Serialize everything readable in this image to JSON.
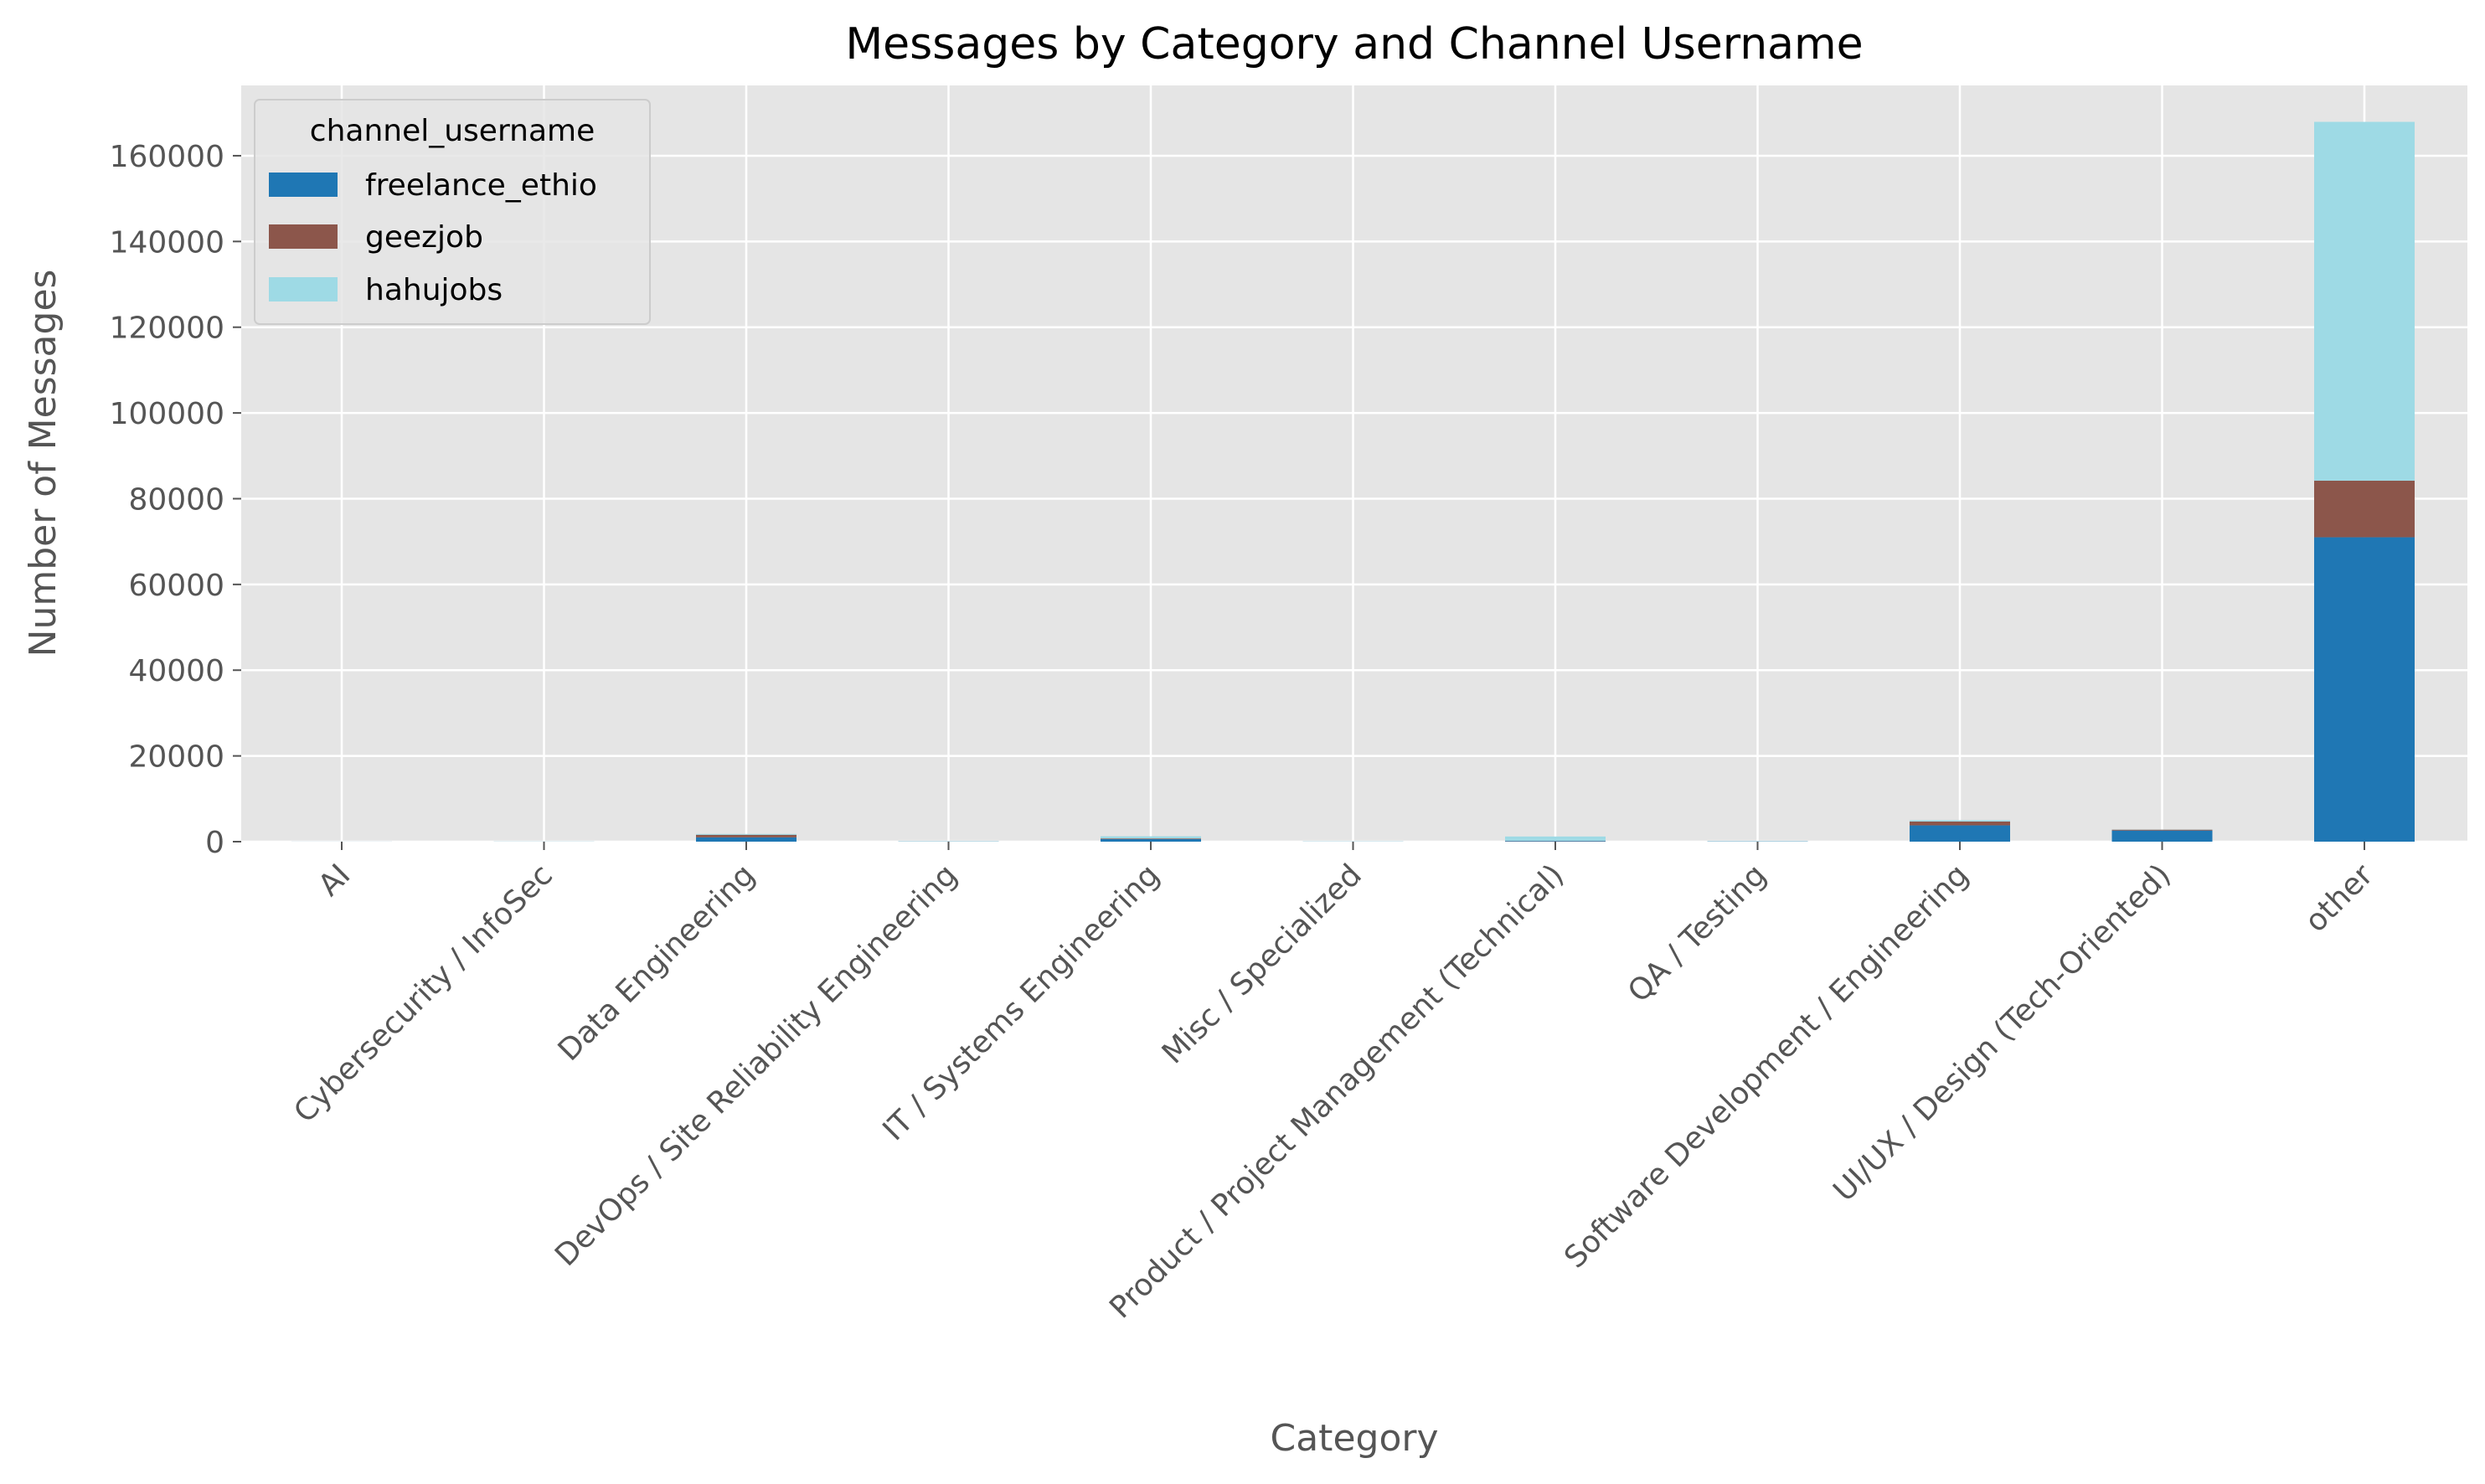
{
  "chart_data": {
    "type": "bar",
    "stacked": true,
    "title": "Messages by Category and Channel Username",
    "xlabel": "Category",
    "ylabel": "Number of Messages",
    "ylim": [
      0,
      176400
    ],
    "yticks": [
      0,
      20000,
      40000,
      60000,
      80000,
      100000,
      120000,
      140000,
      160000
    ],
    "grid": true,
    "legend": {
      "title": "channel_username",
      "placement": "upper-left"
    },
    "categories": [
      "AI",
      "Cybersecurity / InfoSec",
      "Data Engineering",
      "DevOps / Site Reliability Engineering",
      "IT / Systems Engineering",
      "Misc / Specialized",
      "Product / Project Management (Technical)",
      "QA / Testing",
      "Software Development / Engineering",
      "UI/UX / Design (Tech-Oriented)",
      "other"
    ],
    "series": [
      {
        "name": "freelance_ethio",
        "color": "#1f77b4",
        "values": [
          10,
          20,
          1000,
          50,
          600,
          30,
          150,
          60,
          3800,
          2600,
          71000
        ]
      },
      {
        "name": "geezjob",
        "color": "#8c564b",
        "values": [
          5,
          5,
          600,
          10,
          150,
          5,
          50,
          10,
          900,
          200,
          13200
        ]
      },
      {
        "name": "hahujobs",
        "color": "#9edae5",
        "values": [
          10,
          20,
          200,
          60,
          500,
          40,
          1000,
          70,
          300,
          50,
          83700
        ]
      }
    ]
  }
}
